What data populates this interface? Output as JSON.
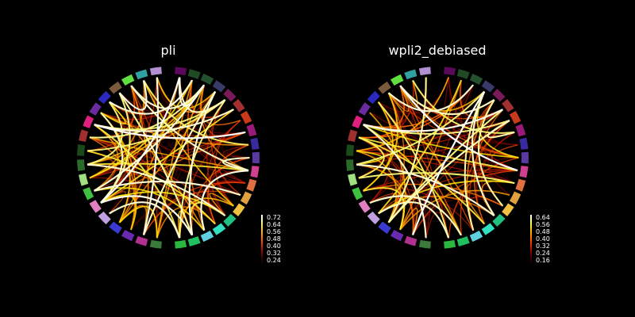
{
  "panels": [
    {
      "title": "pli",
      "colorbar_ticks": [
        "0.72",
        "0.64",
        "0.56",
        "0.48",
        "0.40",
        "0.32",
        "0.24"
      ]
    },
    {
      "title": "wpli2_debiased",
      "colorbar_ticks": [
        "0.64",
        "0.56",
        "0.48",
        "0.40",
        "0.32",
        "0.24",
        "0.16"
      ]
    }
  ],
  "colormap": [
    "#000000",
    "#3d0000",
    "#8b0000",
    "#d42000",
    "#ff5a00",
    "#ff9d00",
    "#ffdf00",
    "#ffff80",
    "#ffffff"
  ],
  "node_colors": [
    "#5b0a5b",
    "#1f4a24",
    "#24502e",
    "#3a3a6a",
    "#7a1a5a",
    "#a23030",
    "#c83a1a",
    "#9a1a7a",
    "#3a2aa0",
    "#5a3aa0",
    "#d04090",
    "#e07040",
    "#e0a040",
    "#f0c040",
    "#20c080",
    "#30e0c0",
    "#60d0e0",
    "#20c060",
    "#2ab840",
    "#3a7a3a",
    "#b03090",
    "#6a2ab0",
    "#3a3ad0",
    "#c0a0e0",
    "#e080c0",
    "#40c040",
    "#a0e080",
    "#2a6a2a",
    "#1a4a1a",
    "#a03030",
    "#e02080",
    "#6a2aa0",
    "#2a2ac0",
    "#7a5a3a",
    "#60e040",
    "#30a0a0",
    "#b090d0"
  ]
}
